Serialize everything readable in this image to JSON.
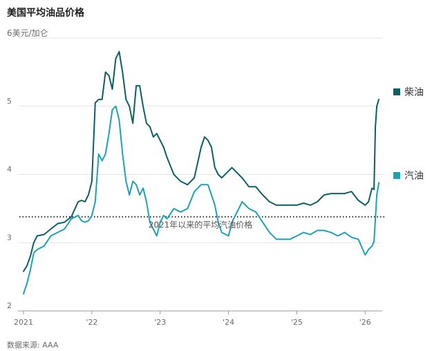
{
  "chart_data": {
    "type": "line",
    "title": "美国平均油品价格",
    "ylabel_unit": "6美元/加仑",
    "source": "数据来源: AAA",
    "ylim": [
      2,
      6
    ],
    "y_ticks": [
      {
        "value": 2,
        "label": "2"
      },
      {
        "value": 3,
        "label": "3"
      },
      {
        "value": 4,
        "label": "4"
      },
      {
        "value": 5,
        "label": "5"
      }
    ],
    "xlim": [
      2021.0,
      2026.25
    ],
    "x_ticks": [
      {
        "value": 2021,
        "label": "2021"
      },
      {
        "value": 2022,
        "label": "'22"
      },
      {
        "value": 2023,
        "label": "'23"
      },
      {
        "value": 2024,
        "label": "'24"
      },
      {
        "value": 2025,
        "label": "'25"
      },
      {
        "value": 2026,
        "label": "'26"
      }
    ],
    "reference_line": {
      "value": 3.38,
      "label": "2021年以来的平均汽油价格"
    },
    "colors": {
      "diesel": "#0b5e63",
      "gasoline": "#1aa3b3",
      "grid": "#e6e6e6",
      "axis": "#999999"
    },
    "series": [
      {
        "name": "柴油",
        "key": "diesel",
        "x": [
          2021.0,
          2021.05,
          2021.1,
          2021.15,
          2021.2,
          2021.3,
          2021.4,
          2021.5,
          2021.6,
          2021.7,
          2021.8,
          2021.85,
          2021.9,
          2021.95,
          2022.0,
          2022.05,
          2022.1,
          2022.15,
          2022.2,
          2022.25,
          2022.3,
          2022.35,
          2022.4,
          2022.45,
          2022.5,
          2022.55,
          2022.6,
          2022.65,
          2022.7,
          2022.75,
          2022.8,
          2022.85,
          2022.9,
          2022.95,
          2023.0,
          2023.05,
          2023.1,
          2023.2,
          2023.3,
          2023.4,
          2023.5,
          2023.6,
          2023.65,
          2023.7,
          2023.75,
          2023.8,
          2023.85,
          2023.9,
          2024.0,
          2024.05,
          2024.1,
          2024.2,
          2024.3,
          2024.4,
          2024.5,
          2024.6,
          2024.7,
          2024.8,
          2024.9,
          2025.0,
          2025.1,
          2025.2,
          2025.3,
          2025.4,
          2025.5,
          2025.6,
          2025.7,
          2025.8,
          2025.9,
          2026.0,
          2026.05,
          2026.1,
          2026.13,
          2026.15,
          2026.17,
          2026.2
        ],
        "values": [
          2.58,
          2.66,
          2.8,
          3.0,
          3.1,
          3.12,
          3.2,
          3.28,
          3.3,
          3.38,
          3.6,
          3.62,
          3.6,
          3.7,
          3.9,
          5.05,
          5.1,
          5.1,
          5.5,
          5.45,
          5.25,
          5.7,
          5.8,
          5.5,
          5.1,
          5.0,
          4.75,
          5.3,
          5.3,
          5.0,
          4.75,
          4.7,
          4.55,
          4.6,
          4.5,
          4.4,
          4.25,
          4.0,
          3.9,
          3.85,
          3.95,
          4.4,
          4.55,
          4.5,
          4.4,
          4.1,
          4.0,
          3.95,
          4.05,
          4.1,
          4.05,
          3.95,
          3.82,
          3.82,
          3.7,
          3.6,
          3.55,
          3.55,
          3.55,
          3.55,
          3.58,
          3.55,
          3.6,
          3.7,
          3.72,
          3.72,
          3.72,
          3.75,
          3.62,
          3.55,
          3.6,
          3.8,
          3.78,
          4.7,
          5.0,
          5.1
        ]
      },
      {
        "name": "汽油",
        "key": "gasoline",
        "x": [
          2021.0,
          2021.05,
          2021.1,
          2021.15,
          2021.2,
          2021.3,
          2021.4,
          2021.5,
          2021.6,
          2021.7,
          2021.8,
          2021.85,
          2021.9,
          2021.95,
          2022.0,
          2022.05,
          2022.1,
          2022.15,
          2022.2,
          2022.25,
          2022.3,
          2022.35,
          2022.4,
          2022.45,
          2022.5,
          2022.55,
          2022.6,
          2022.65,
          2022.7,
          2022.75,
          2022.8,
          2022.85,
          2022.9,
          2022.95,
          2023.0,
          2023.05,
          2023.1,
          2023.2,
          2023.3,
          2023.4,
          2023.5,
          2023.6,
          2023.65,
          2023.7,
          2023.75,
          2023.8,
          2023.85,
          2023.9,
          2024.0,
          2024.05,
          2024.1,
          2024.2,
          2024.3,
          2024.4,
          2024.5,
          2024.6,
          2024.7,
          2024.8,
          2024.9,
          2025.0,
          2025.1,
          2025.2,
          2025.3,
          2025.4,
          2025.5,
          2025.6,
          2025.7,
          2025.8,
          2025.9,
          2026.0,
          2026.05,
          2026.1,
          2026.13,
          2026.15,
          2026.17,
          2026.2
        ],
        "values": [
          2.25,
          2.4,
          2.6,
          2.85,
          2.9,
          2.95,
          3.1,
          3.15,
          3.2,
          3.35,
          3.4,
          3.32,
          3.3,
          3.32,
          3.4,
          3.6,
          4.3,
          4.2,
          4.3,
          4.6,
          4.95,
          5.0,
          4.8,
          4.3,
          3.9,
          3.7,
          3.9,
          3.85,
          3.7,
          3.8,
          3.6,
          3.3,
          3.2,
          3.1,
          3.3,
          3.4,
          3.35,
          3.5,
          3.45,
          3.5,
          3.75,
          3.85,
          3.85,
          3.85,
          3.7,
          3.55,
          3.3,
          3.15,
          3.1,
          3.3,
          3.4,
          3.6,
          3.5,
          3.45,
          3.3,
          3.15,
          3.05,
          3.05,
          3.05,
          3.1,
          3.15,
          3.12,
          3.18,
          3.18,
          3.15,
          3.1,
          3.15,
          3.08,
          3.05,
          2.82,
          2.9,
          2.95,
          3.02,
          3.35,
          3.7,
          3.88
        ]
      }
    ]
  }
}
